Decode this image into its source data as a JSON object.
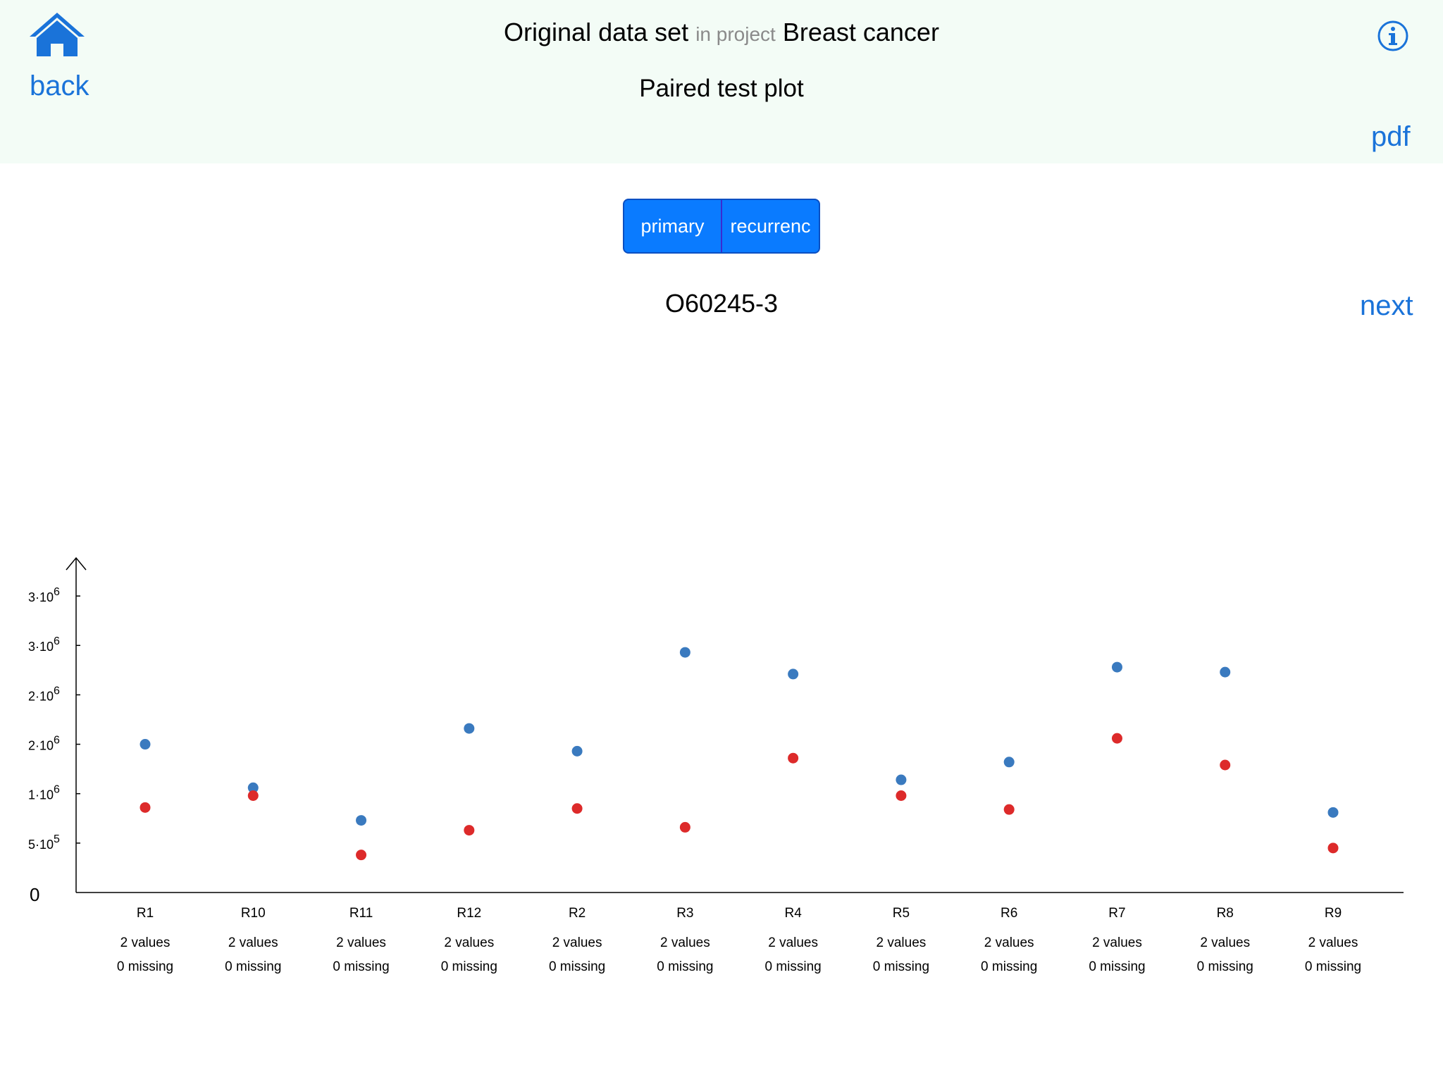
{
  "header": {
    "back_label": "back",
    "title_main": "Original data set",
    "title_connector": "in project",
    "title_project": "Breast cancer",
    "subtitle": "Paired test plot",
    "pdf_label": "pdf",
    "home_icon": "home-icon",
    "info_icon": "info-icon"
  },
  "segmented": {
    "options": [
      "primary",
      "recurrenc"
    ]
  },
  "protein_id": "O60245-3",
  "next_label": "next",
  "colors": {
    "accent": "#1a73d9",
    "segment_bg": "#0a7bff",
    "header_bg": "#f3fcf6",
    "series_primary": "#3a7abf",
    "series_recurrence": "#dd2a2a"
  },
  "chart_data": {
    "type": "scatter",
    "y_ticks": [
      {
        "value": 0,
        "base": "0",
        "exp": ""
      },
      {
        "value": 500000,
        "base": "5·10",
        "exp": "5"
      },
      {
        "value": 1000000,
        "base": "1·10",
        "exp": "6"
      },
      {
        "value": 1500000,
        "base": "2·10",
        "exp": "6"
      },
      {
        "value": 2000000,
        "base": "2·10",
        "exp": "6"
      },
      {
        "value": 2500000,
        "base": "3·10",
        "exp": "6"
      },
      {
        "value": 3000000,
        "base": "3·10",
        "exp": "6"
      }
    ],
    "ylim": [
      0,
      3300000
    ],
    "categories": [
      "R1",
      "R10",
      "R11",
      "R12",
      "R2",
      "R3",
      "R4",
      "R5",
      "R6",
      "R7",
      "R8",
      "R9"
    ],
    "counts": [
      "2 values",
      "2 values",
      "2 values",
      "2 values",
      "2 values",
      "2 values",
      "2 values",
      "2 values",
      "2 values",
      "2 values",
      "2 values",
      "2 values"
    ],
    "missing": [
      "0 missing",
      "0 missing",
      "0 missing",
      "0 missing",
      "0 missing",
      "0 missing",
      "0 missing",
      "0 missing",
      "0 missing",
      "0 missing",
      "0 missing",
      "0 missing"
    ],
    "series": [
      {
        "color": "#3a7abf",
        "values": [
          1500000,
          1060000,
          730000,
          1660000,
          1430000,
          2430000,
          2210000,
          1140000,
          1320000,
          2280000,
          2230000,
          810000
        ]
      },
      {
        "color": "#dd2a2a",
        "values": [
          860000,
          980000,
          380000,
          630000,
          850000,
          660000,
          1360000,
          980000,
          840000,
          1560000,
          1290000,
          450000
        ]
      }
    ]
  }
}
